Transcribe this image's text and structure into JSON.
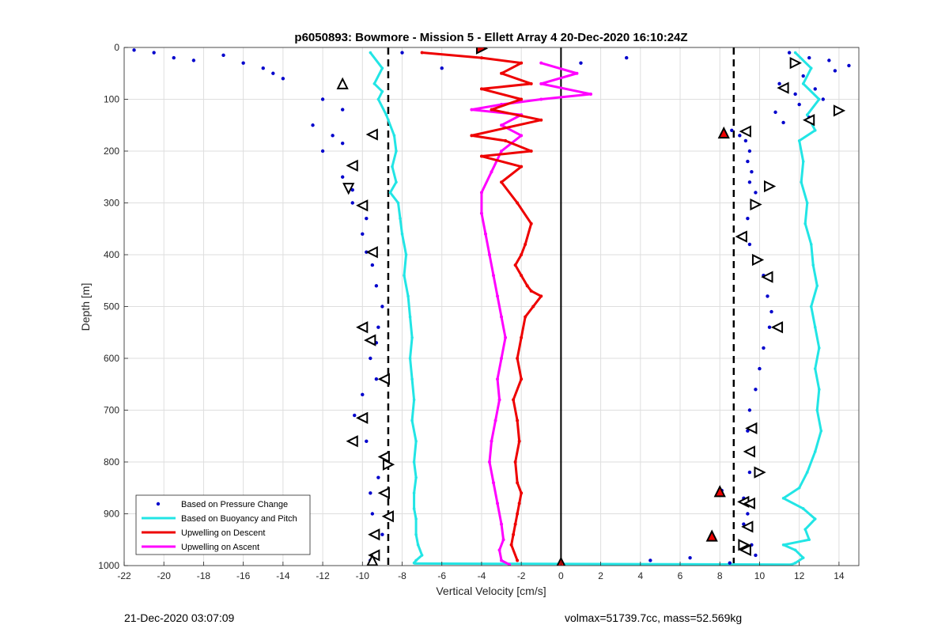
{
  "chart_data": {
    "type": "scatter",
    "title": "p6050893: Bowmore - Mission 5 - Ellett Array 4 20-Dec-2020 16:10:24Z",
    "xlabel": "Vertical Velocity [cm/s]",
    "ylabel": "Depth [m]",
    "xlim": [
      -22,
      15
    ],
    "ylim": [
      0,
      1000
    ],
    "y_reversed": true,
    "grid": true,
    "x_ticks": [
      -22,
      -20,
      -18,
      -16,
      -14,
      -12,
      -10,
      -8,
      -6,
      -4,
      -2,
      0,
      2,
      4,
      6,
      8,
      10,
      12,
      14
    ],
    "y_ticks": [
      0,
      100,
      200,
      300,
      400,
      500,
      600,
      700,
      800,
      900,
      1000
    ],
    "legend_position": "bottom-left",
    "colors": {
      "pressure": "#0000cc",
      "buoyancy": "#22e5e5",
      "descent": "#ee0000",
      "ascent": "#ff00ff",
      "reference": "#000000"
    },
    "legend": [
      {
        "label": "Based on Pressure Change",
        "key": "pressure",
        "marker": "dot"
      },
      {
        "label": "Based on Buoyancy and Pitch",
        "key": "buoyancy",
        "marker": "line"
      },
      {
        "label": "Upwelling on Descent",
        "key": "descent",
        "marker": "line"
      },
      {
        "label": "Upwelling on Ascent",
        "key": "ascent",
        "marker": "line"
      }
    ],
    "reference_lines": {
      "solid_x": 0,
      "dashed_x": [
        -8.7,
        8.7
      ]
    },
    "series": [
      {
        "name": "Based on Buoyancy and Pitch",
        "key": "buoyancy",
        "branches": [
          {
            "x": [
              -9.6,
              -9.0,
              -9.4,
              -9.0,
              -9.2,
              -8.8,
              -8.4,
              -8.3,
              -8.5,
              -8.3,
              -8.6,
              -8.2,
              -8.1,
              -8.0,
              -7.8,
              -7.9,
              -7.7,
              -7.6,
              -7.5,
              -7.6,
              -7.5,
              -7.4,
              -7.5,
              -7.3,
              -7.4,
              -7.3,
              -7.4,
              -7.4,
              -7.3,
              -7.3,
              -7.2,
              -7.0,
              -7.3,
              -7.4
            ],
            "y": [
              10,
              40,
              70,
              85,
              100,
              130,
              170,
              200,
              230,
              260,
              280,
              300,
              330,
              360,
              400,
              440,
              480,
              520,
              560,
              600,
              640,
              680,
              720,
              760,
              800,
              830,
              860,
              890,
              910,
              940,
              960,
              980,
              990,
              995
            ]
          },
          {
            "x": [
              11.8,
              12.6,
              12.2,
              13.0,
              12.4,
              12.8,
              12.0,
              12.2,
              12.1,
              12.4,
              12.3,
              12.6,
              12.7,
              12.9,
              12.6,
              12.8,
              13.0,
              12.8,
              13.0,
              12.9,
              13.1,
              12.8,
              12.4,
              12.0,
              11.2,
              12.2,
              12.8,
              12.3,
              12.5,
              11.2,
              11.8,
              12.2,
              11.8,
              11.6
            ],
            "y": [
              10,
              40,
              70,
              100,
              130,
              160,
              180,
              220,
              260,
              300,
              340,
              380,
              420,
              460,
              500,
              540,
              580,
              620,
              660,
              700,
              740,
              780,
              820,
              850,
              870,
              890,
              910,
              930,
              950,
              960,
              970,
              985,
              995,
              998
            ]
          }
        ],
        "bottom_segment": {
          "x": [
            -7.4,
            11.6
          ],
          "y": [
            996,
            998
          ]
        }
      },
      {
        "name": "Upwelling on Descent",
        "key": "descent",
        "x": [
          -7.0,
          -4.0,
          -2.0,
          -3.0,
          -1.5,
          -4.0,
          -2.0,
          -3.5,
          -1.0,
          -4.5,
          -2.8,
          -1.5,
          -4.0,
          -2.0,
          -3.0,
          -2.2,
          -1.5,
          -1.8,
          -2.0,
          -2.3,
          -2.0,
          -1.7,
          -1.5,
          -1.0,
          -1.4,
          -1.8,
          -2.0,
          -2.2,
          -2.0,
          -2.4,
          -2.2,
          -2.1,
          -2.3,
          -2.2,
          -2.0,
          -2.1,
          -2.2,
          -2.3,
          -2.4,
          -2.5,
          -2.2
        ],
        "y": [
          10,
          20,
          30,
          50,
          70,
          80,
          100,
          120,
          140,
          170,
          180,
          200,
          210,
          230,
          260,
          300,
          340,
          380,
          400,
          420,
          440,
          460,
          470,
          480,
          500,
          520,
          560,
          600,
          640,
          680,
          720,
          760,
          800,
          840,
          860,
          880,
          900,
          920,
          940,
          960,
          990
        ]
      },
      {
        "name": "Upwelling on Ascent",
        "key": "ascent",
        "x": [
          -1.0,
          0.8,
          -1.0,
          1.5,
          -1.0,
          -3.0,
          -4.5,
          -2.0,
          -3.0,
          -2.0,
          -3.0,
          -3.5,
          -4.0,
          -4.0,
          -3.8,
          -3.6,
          -3.4,
          -3.2,
          -3.0,
          -2.8,
          -3.0,
          -3.2,
          -3.1,
          -3.3,
          -3.5,
          -3.6,
          -3.4,
          -3.2,
          -3.0,
          -2.9,
          -3.1,
          -3.0,
          -2.6
        ],
        "y": [
          30,
          50,
          70,
          90,
          100,
          110,
          120,
          130,
          150,
          170,
          200,
          240,
          280,
          320,
          360,
          400,
          440,
          480,
          520,
          560,
          600,
          640,
          680,
          720,
          760,
          800,
          840,
          880,
          920,
          950,
          970,
          990,
          998
        ]
      }
    ],
    "pressure_scatter": {
      "name": "Based on Pressure Change",
      "key": "pressure",
      "branches": [
        {
          "x": [
            -21.5,
            -20.5,
            -19.5,
            -18.5,
            -17.0,
            -16.0,
            -15.0,
            -14.5,
            -14.0,
            -12.0,
            -11.0,
            -12.5,
            -11.5,
            -11.0,
            -12.0,
            -10.5,
            -11.0,
            -10.5,
            -10.5,
            -9.8,
            -10.0,
            -9.8,
            -9.5,
            -9.3,
            -9.0,
            -9.2,
            -9.3,
            -9.6,
            -9.3,
            -10.0,
            -10.4,
            -9.8,
            -9.0,
            -9.2,
            -9.6,
            -9.5,
            -9.0,
            -9.6
          ],
          "y": [
            5,
            10,
            20,
            25,
            15,
            30,
            40,
            50,
            60,
            100,
            120,
            150,
            170,
            185,
            200,
            230,
            250,
            275,
            300,
            330,
            360,
            395,
            420,
            460,
            500,
            540,
            570,
            600,
            640,
            670,
            710,
            760,
            790,
            830,
            860,
            900,
            940,
            990
          ]
        },
        {
          "x": [
            8.6,
            9.0,
            9.3,
            9.5,
            9.4,
            9.6,
            9.5,
            9.8,
            9.6,
            9.4,
            9.2,
            9.5,
            9.8,
            10.2,
            10.4,
            10.6,
            10.5,
            10.2,
            10.0,
            9.8,
            9.5,
            9.4,
            9.7,
            9.5,
            8.1,
            9.2,
            9.5,
            9.4,
            9.2,
            7.6,
            9.6,
            9.8
          ],
          "y": [
            160,
            170,
            180,
            200,
            220,
            240,
            260,
            280,
            300,
            330,
            360,
            380,
            410,
            440,
            480,
            510,
            540,
            580,
            620,
            660,
            700,
            740,
            780,
            820,
            855,
            870,
            880,
            900,
            920,
            945,
            960,
            980
          ]
        },
        {
          "x": [
            11.5,
            12.5,
            13.5,
            14.5,
            13.8,
            12.2,
            11.0,
            12.8,
            11.8,
            13.2,
            12.0,
            10.8,
            12.5,
            11.2
          ],
          "y": [
            10,
            20,
            25,
            35,
            45,
            55,
            70,
            80,
            90,
            100,
            110,
            125,
            135,
            145
          ]
        },
        {
          "x": [
            -8.0,
            -6.0,
            1.0,
            3.3,
            4.5,
            6.5,
            8.5
          ],
          "y": [
            10,
            40,
            30,
            20,
            990,
            985,
            995
          ]
        }
      ]
    },
    "triangle_markers": [
      {
        "x": -4.0,
        "y": 2,
        "dir": "right",
        "fill": "#ee0000"
      },
      {
        "x": -11.0,
        "y": 70,
        "dir": "up"
      },
      {
        "x": -9.5,
        "y": 168,
        "dir": "left"
      },
      {
        "x": -10.5,
        "y": 228,
        "dir": "left"
      },
      {
        "x": -10.7,
        "y": 272,
        "dir": "down"
      },
      {
        "x": -10.0,
        "y": 305,
        "dir": "left"
      },
      {
        "x": -9.5,
        "y": 395,
        "dir": "left"
      },
      {
        "x": -10.0,
        "y": 540,
        "dir": "left"
      },
      {
        "x": -9.6,
        "y": 565,
        "dir": "left"
      },
      {
        "x": -8.9,
        "y": 640,
        "dir": "left"
      },
      {
        "x": -10.0,
        "y": 715,
        "dir": "left"
      },
      {
        "x": -10.5,
        "y": 760,
        "dir": "left"
      },
      {
        "x": -8.9,
        "y": 790,
        "dir": "left"
      },
      {
        "x": -8.7,
        "y": 805,
        "dir": "right"
      },
      {
        "x": -8.9,
        "y": 860,
        "dir": "left"
      },
      {
        "x": -8.7,
        "y": 905,
        "dir": "left"
      },
      {
        "x": -9.4,
        "y": 940,
        "dir": "left"
      },
      {
        "x": -9.4,
        "y": 980,
        "dir": "left"
      },
      {
        "x": -9.5,
        "y": 990,
        "dir": "up"
      },
      {
        "x": 11.8,
        "y": 30,
        "dir": "right"
      },
      {
        "x": 11.2,
        "y": 78,
        "dir": "left"
      },
      {
        "x": 14.0,
        "y": 122,
        "dir": "right"
      },
      {
        "x": 12.5,
        "y": 140,
        "dir": "left"
      },
      {
        "x": 8.2,
        "y": 165,
        "dir": "up",
        "fill": "#ee0000"
      },
      {
        "x": 9.3,
        "y": 162,
        "dir": "left"
      },
      {
        "x": 10.5,
        "y": 268,
        "dir": "right"
      },
      {
        "x": 9.8,
        "y": 303,
        "dir": "right"
      },
      {
        "x": 9.1,
        "y": 365,
        "dir": "left"
      },
      {
        "x": 9.9,
        "y": 410,
        "dir": "right"
      },
      {
        "x": 10.4,
        "y": 443,
        "dir": "left"
      },
      {
        "x": 10.9,
        "y": 540,
        "dir": "left"
      },
      {
        "x": 9.6,
        "y": 735,
        "dir": "left"
      },
      {
        "x": 9.5,
        "y": 780,
        "dir": "left"
      },
      {
        "x": 10.0,
        "y": 820,
        "dir": "right"
      },
      {
        "x": 8.0,
        "y": 857,
        "dir": "up",
        "fill": "#ee0000"
      },
      {
        "x": 9.2,
        "y": 877,
        "dir": "left"
      },
      {
        "x": 9.5,
        "y": 880,
        "dir": "left"
      },
      {
        "x": 9.4,
        "y": 925,
        "dir": "left"
      },
      {
        "x": 7.6,
        "y": 943,
        "dir": "up",
        "fill": "#ee0000"
      },
      {
        "x": 9.2,
        "y": 960,
        "dir": "right"
      },
      {
        "x": 9.3,
        "y": 970,
        "dir": "left"
      },
      {
        "x": 0.0,
        "y": 995,
        "dir": "up",
        "fill": "#ee0000"
      }
    ]
  },
  "footer": {
    "timestamp": "21-Dec-2020 03:07:09",
    "mass_info": "volmax=51739.7cc, mass=52.569kg"
  }
}
